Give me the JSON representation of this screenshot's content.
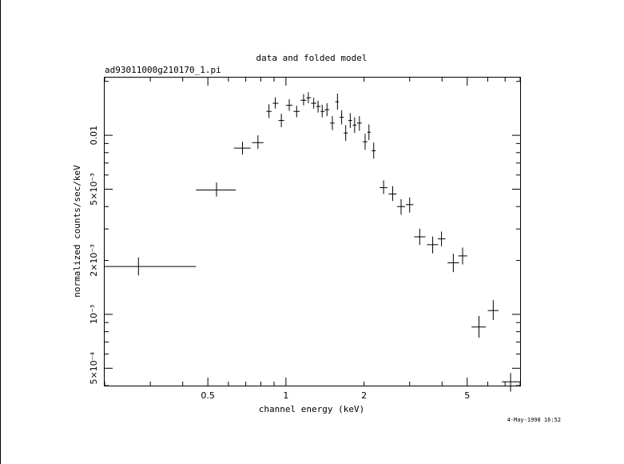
{
  "chart_data": {
    "type": "scatter",
    "title": "data and folded model",
    "subtitle": "ad93011000g210170_1.pi",
    "xlabel": "channel energy (keV)",
    "ylabel": "normalized counts/sec/keV",
    "footer": "4-May-1998 16:52",
    "xscale": "log",
    "yscale": "log",
    "xlim": [
      0.2,
      8.0
    ],
    "ylim": [
      0.0004,
      0.021
    ],
    "x_ticks": [
      {
        "value": 0.5,
        "label": "0.5"
      },
      {
        "value": 1,
        "label": "1"
      },
      {
        "value": 2,
        "label": "2"
      },
      {
        "value": 5,
        "label": "5"
      }
    ],
    "y_ticks": [
      {
        "value": 0.01,
        "label": "0.01"
      },
      {
        "value": 0.005,
        "label": "5×10⁻³"
      },
      {
        "value": 0.002,
        "label": "2×10⁻³"
      },
      {
        "value": 0.001,
        "label": "10⁻³"
      },
      {
        "value": 0.0005,
        "label": "5×10⁻⁴"
      }
    ],
    "series": [
      {
        "points": [
          {
            "x": 0.27,
            "xlo": 0.2,
            "xhi": 0.45,
            "y": 0.00185,
            "ylo": 0.00165,
            "yhi": 0.00208
          },
          {
            "x": 0.54,
            "xlo": 0.45,
            "xhi": 0.64,
            "y": 0.00495,
            "ylo": 0.00455,
            "yhi": 0.00545
          },
          {
            "x": 0.68,
            "xlo": 0.63,
            "xhi": 0.73,
            "y": 0.00848,
            "ylo": 0.0078,
            "yhi": 0.0092
          },
          {
            "x": 0.78,
            "xlo": 0.74,
            "xhi": 0.82,
            "y": 0.0091,
            "ylo": 0.0084,
            "yhi": 0.01
          },
          {
            "x": 0.86,
            "xlo": 0.84,
            "xhi": 0.88,
            "y": 0.0136,
            "ylo": 0.0125,
            "yhi": 0.0149
          },
          {
            "x": 0.91,
            "xlo": 0.89,
            "xhi": 0.935,
            "y": 0.0151,
            "ylo": 0.0141,
            "yhi": 0.0163
          },
          {
            "x": 0.96,
            "xlo": 0.935,
            "xhi": 0.985,
            "y": 0.0121,
            "ylo": 0.0111,
            "yhi": 0.0132
          },
          {
            "x": 1.03,
            "xlo": 1.0,
            "xhi": 1.06,
            "y": 0.0147,
            "ylo": 0.0137,
            "yhi": 0.0159
          },
          {
            "x": 1.1,
            "xlo": 1.07,
            "xhi": 1.13,
            "y": 0.0136,
            "ylo": 0.0126,
            "yhi": 0.0146
          },
          {
            "x": 1.17,
            "xlo": 1.14,
            "xhi": 1.2,
            "y": 0.0157,
            "ylo": 0.0147,
            "yhi": 0.017
          },
          {
            "x": 1.22,
            "xlo": 1.2,
            "xhi": 1.25,
            "y": 0.0162,
            "ylo": 0.0151,
            "yhi": 0.0174
          },
          {
            "x": 1.28,
            "xlo": 1.25,
            "xhi": 1.31,
            "y": 0.0151,
            "ylo": 0.0141,
            "yhi": 0.0162
          },
          {
            "x": 1.33,
            "xlo": 1.31,
            "xhi": 1.36,
            "y": 0.0145,
            "ylo": 0.0134,
            "yhi": 0.0156
          },
          {
            "x": 1.38,
            "xlo": 1.36,
            "xhi": 1.41,
            "y": 0.0136,
            "ylo": 0.0126,
            "yhi": 0.0148
          },
          {
            "x": 1.44,
            "xlo": 1.41,
            "xhi": 1.47,
            "y": 0.0139,
            "ylo": 0.0128,
            "yhi": 0.0151
          },
          {
            "x": 1.51,
            "xlo": 1.48,
            "xhi": 1.54,
            "y": 0.0117,
            "ylo": 0.0107,
            "yhi": 0.0128
          },
          {
            "x": 1.58,
            "xlo": 1.55,
            "xhi": 1.6,
            "y": 0.0154,
            "ylo": 0.0139,
            "yhi": 0.0171
          },
          {
            "x": 1.64,
            "xlo": 1.61,
            "xhi": 1.67,
            "y": 0.0126,
            "ylo": 0.0115,
            "yhi": 0.0138
          },
          {
            "x": 1.7,
            "xlo": 1.67,
            "xhi": 1.73,
            "y": 0.0103,
            "ylo": 0.0093,
            "yhi": 0.0114
          },
          {
            "x": 1.77,
            "xlo": 1.74,
            "xhi": 1.8,
            "y": 0.0121,
            "ylo": 0.011,
            "yhi": 0.0133
          },
          {
            "x": 1.84,
            "xlo": 1.81,
            "xhi": 1.87,
            "y": 0.0114,
            "ylo": 0.0103,
            "yhi": 0.0126
          },
          {
            "x": 1.92,
            "xlo": 1.88,
            "xhi": 1.96,
            "y": 0.0117,
            "ylo": 0.0106,
            "yhi": 0.0128
          },
          {
            "x": 2.02,
            "xlo": 1.98,
            "xhi": 2.06,
            "y": 0.0092,
            "ylo": 0.0083,
            "yhi": 0.0102
          },
          {
            "x": 2.09,
            "xlo": 2.06,
            "xhi": 2.12,
            "y": 0.0104,
            "ylo": 0.0094,
            "yhi": 0.0115
          },
          {
            "x": 2.18,
            "xlo": 2.14,
            "xhi": 2.22,
            "y": 0.0082,
            "ylo": 0.0074,
            "yhi": 0.0091
          },
          {
            "x": 2.38,
            "xlo": 2.3,
            "xhi": 2.46,
            "y": 0.0051,
            "ylo": 0.0047,
            "yhi": 0.0056
          },
          {
            "x": 2.58,
            "xlo": 2.49,
            "xhi": 2.67,
            "y": 0.0047,
            "ylo": 0.0043,
            "yhi": 0.0052
          },
          {
            "x": 2.78,
            "xlo": 2.68,
            "xhi": 2.88,
            "y": 0.004,
            "ylo": 0.0036,
            "yhi": 0.0044
          },
          {
            "x": 3.0,
            "xlo": 2.9,
            "xhi": 3.1,
            "y": 0.0041,
            "ylo": 0.0037,
            "yhi": 0.0045
          },
          {
            "x": 3.28,
            "xlo": 3.12,
            "xhi": 3.45,
            "y": 0.00271,
            "ylo": 0.00244,
            "yhi": 0.00301
          },
          {
            "x": 3.68,
            "xlo": 3.5,
            "xhi": 3.86,
            "y": 0.00245,
            "ylo": 0.00219,
            "yhi": 0.00272
          },
          {
            "x": 3.98,
            "xlo": 3.85,
            "xhi": 4.12,
            "y": 0.00264,
            "ylo": 0.0024,
            "yhi": 0.0029
          },
          {
            "x": 4.42,
            "xlo": 4.2,
            "xhi": 4.65,
            "y": 0.00194,
            "ylo": 0.00172,
            "yhi": 0.00218
          },
          {
            "x": 4.8,
            "xlo": 4.62,
            "xhi": 5.0,
            "y": 0.00212,
            "ylo": 0.0019,
            "yhi": 0.00236
          },
          {
            "x": 5.55,
            "xlo": 5.2,
            "xhi": 5.9,
            "y": 0.00085,
            "ylo": 0.00074,
            "yhi": 0.00098
          },
          {
            "x": 6.3,
            "xlo": 6.0,
            "xhi": 6.6,
            "y": 0.00105,
            "ylo": 0.00093,
            "yhi": 0.0012
          },
          {
            "x": 7.35,
            "xlo": 6.8,
            "xhi": 8.0,
            "y": 0.00042,
            "ylo": 0.00037,
            "yhi": 0.00047
          }
        ]
      }
    ]
  }
}
